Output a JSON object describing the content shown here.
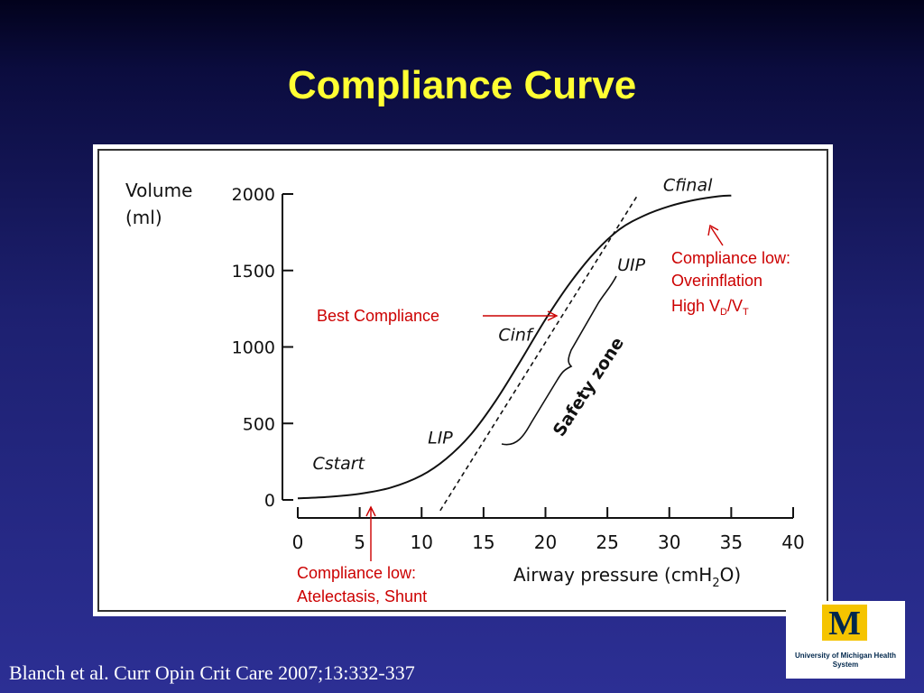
{
  "slide": {
    "title": "Compliance Curve",
    "citation": "Blanch et al.  Curr Opin Crit Care 2007;13:332-337"
  },
  "logo": {
    "mark": "M",
    "text": "University of Michigan Health System",
    "colors": {
      "maize": "#f5c400",
      "blue": "#00274c"
    }
  },
  "chart_data": {
    "type": "line",
    "title": "",
    "ylabel_line1": "Volume",
    "ylabel_line2": "(ml)",
    "xlabel_prefix": "Airway pressure (cmH",
    "xlabel_sub": "2",
    "xlabel_suffix": "O)",
    "xlim": [
      0,
      40
    ],
    "ylim": [
      0,
      2000
    ],
    "xticks": [
      0,
      5,
      10,
      15,
      20,
      25,
      30,
      35,
      40
    ],
    "yticks": [
      0,
      500,
      1000,
      1500,
      2000
    ],
    "grid": false,
    "series": [
      {
        "x": [
          0,
          2.5,
          5,
          7.5,
          10,
          12,
          14,
          16,
          18,
          20,
          22,
          24,
          26,
          28,
          30,
          32,
          34,
          35
        ],
        "y": [
          10,
          20,
          40,
          80,
          160,
          270,
          430,
          650,
          910,
          1180,
          1420,
          1620,
          1770,
          1860,
          1920,
          1960,
          1985,
          1990
        ]
      }
    ],
    "tangent_line": {
      "x": [
        11.5,
        27.5
      ],
      "y": [
        -70,
        2000
      ],
      "style": "dashed"
    },
    "curve_labels": [
      {
        "text": "Cstart",
        "x": 1.2,
        "y": 200
      },
      {
        "text": "LIP",
        "x": 10.5,
        "y": 370
      },
      {
        "text": "Cinf",
        "x": 16.2,
        "y": 1040
      },
      {
        "text": "UIP",
        "x": 25.8,
        "y": 1500
      },
      {
        "text": "Cfinal",
        "x": 29.5,
        "y": 2020
      }
    ],
    "safety_zone_label": "Safety zone",
    "annotations": {
      "best": "Best Compliance",
      "overinflation": [
        "Compliance low:",
        "Overinflation",
        "High V"
      ],
      "overinflation_sub1": "D",
      "overinflation_slash": "/V",
      "overinflation_sub2": "T",
      "atelectasis": [
        "Compliance low:",
        "Atelectasis, Shunt"
      ]
    },
    "colors": {
      "annotation": "#cc0000",
      "curve": "#111111",
      "title": "#ffff33"
    }
  }
}
